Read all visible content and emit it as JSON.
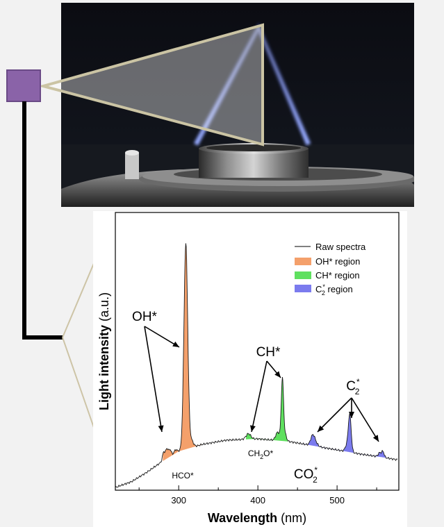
{
  "legend": {
    "raw": "Raw spectra",
    "oh": "OH* region",
    "ch": "CH* region",
    "c2_base": "C",
    "c2_sup": "*",
    "c2_sub": "2",
    "c2_tail": " region"
  },
  "labels": {
    "oh_star": "OH*",
    "ch_star": "CH*",
    "c2_base": "C",
    "c2_sup": "*",
    "c2_sub": "2",
    "hco": "HCO*",
    "ch2o_a": "CH",
    "ch2o_sub": "2",
    "ch2o_b": "O*",
    "co2_base": "CO",
    "co2_sup": "*",
    "co2_sub": "2"
  },
  "axes": {
    "xlabel_bold": "Wavelength",
    "xlabel_unit": " (nm)",
    "ylabel_bold": "Light intensity",
    "ylabel_unit": " (a.u.)",
    "xticks": [
      "300",
      "400",
      "500"
    ]
  },
  "colors": {
    "oh": "#f4a06b",
    "ch": "#5fe05f",
    "c2": "#7b7bee",
    "marker": "#8a63a8",
    "frame": "#cdc4a6"
  },
  "chart_data": {
    "type": "line",
    "title": "",
    "xlabel": "Wavelength (nm)",
    "ylabel": "Light intensity (a.u.)",
    "xlim": [
      220,
      578
    ],
    "x_ticks": [
      300,
      400,
      500
    ],
    "series": [
      {
        "name": "Raw spectra"
      },
      {
        "name": "OH* region",
        "range": [
          280,
          330
        ]
      },
      {
        "name": "CH* region",
        "range": [
          385,
          438
        ]
      },
      {
        "name": "C2* region",
        "range": [
          455,
          565
        ]
      }
    ],
    "peaks": [
      {
        "label": "OH*",
        "x": 309
      },
      {
        "label": "CH*",
        "x": 431
      },
      {
        "label": "C2*",
        "x": 516
      }
    ]
  }
}
